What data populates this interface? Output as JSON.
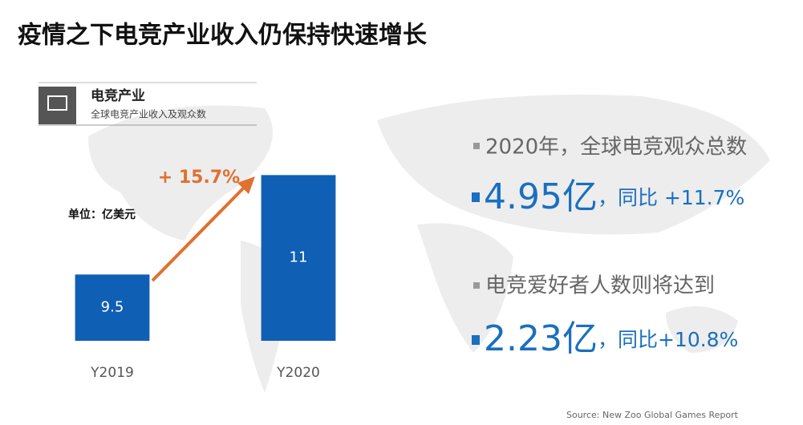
{
  "title": "疫情之下电竞产业收入仍保持快速增长",
  "panel": {
    "heading": "电竞产业",
    "subheading": "全球电竞产业收入及观众数"
  },
  "chart_data": {
    "type": "bar",
    "unit_label": "单位：亿美元",
    "annotation": "+ 15.7%",
    "categories": [
      "Y2019",
      "Y2020"
    ],
    "values": [
      9.5,
      11
    ],
    "color": "#0f5fb5",
    "ylim": [
      8.5,
      11.5
    ]
  },
  "stats": [
    {
      "caption": "2020年，全球电竞观众总数",
      "figure": "4.95亿",
      "change": "，同比 +11.7%"
    },
    {
      "caption": "电竞爱好者人数则将达到",
      "figure": "2.23亿",
      "change": "，同比+10.8%"
    }
  ],
  "source": "Source:  New Zoo Global Games Report"
}
